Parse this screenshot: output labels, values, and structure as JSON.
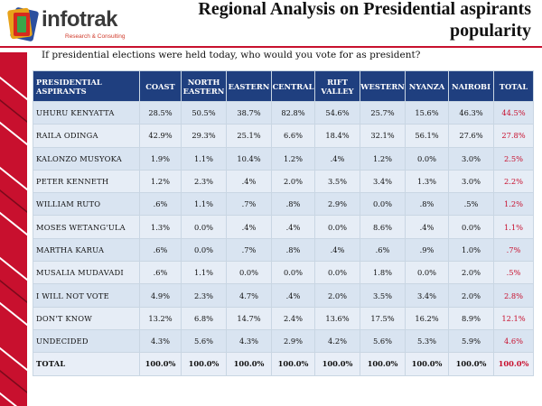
{
  "header": {
    "title": "Regional Analysis on Presidential aspirants popularity",
    "subtitle": "If presidential elections were held today, who would you vote for as president?",
    "logo_text": "infotrak",
    "logo_subtitle": "Research & Consulting"
  },
  "colors": {
    "accent": "#c8102e",
    "header_bg": "#1f3f7f",
    "row_bg": "#d9e4f1",
    "row_alt": "#e6edf6"
  },
  "table": {
    "columns": [
      "PRESIDENTIAL ASPIRANTS",
      "COAST",
      "NORTH EASTERN",
      "EASTERN",
      "CENTRAL",
      "RIFT VALLEY",
      "WESTERN",
      "NYANZA",
      "NAIROBI",
      "TOTAL"
    ],
    "rows": [
      {
        "name": "UHURU KENYATTA",
        "vals": [
          "28.5%",
          "50.5%",
          "38.7%",
          "82.8%",
          "54.6%",
          "25.7%",
          "15.6%",
          "46.3%",
          "44.5%"
        ]
      },
      {
        "name": "RAILA ODINGA",
        "vals": [
          "42.9%",
          "29.3%",
          "25.1%",
          "6.6%",
          "18.4%",
          "32.1%",
          "56.1%",
          "27.6%",
          "27.8%"
        ]
      },
      {
        "name": "KALONZO MUSYOKA",
        "vals": [
          "1.9%",
          "1.1%",
          "10.4%",
          "1.2%",
          ".4%",
          "1.2%",
          "0.0%",
          "3.0%",
          "2.5%"
        ]
      },
      {
        "name": "PETER KENNETH",
        "vals": [
          "1.2%",
          "2.3%",
          ".4%",
          "2.0%",
          "3.5%",
          "3.4%",
          "1.3%",
          "3.0%",
          "2.2%"
        ]
      },
      {
        "name": "WILLIAM RUTO",
        "vals": [
          ".6%",
          "1.1%",
          ".7%",
          ".8%",
          "2.9%",
          "0.0%",
          ".8%",
          ".5%",
          "1.2%"
        ]
      },
      {
        "name": "MOSES WETANG'ULA",
        "vals": [
          "1.3%",
          "0.0%",
          ".4%",
          ".4%",
          "0.0%",
          "8.6%",
          ".4%",
          "0.0%",
          "1.1%"
        ]
      },
      {
        "name": "MARTHA KARUA",
        "vals": [
          ".6%",
          "0.0%",
          ".7%",
          ".8%",
          ".4%",
          ".6%",
          ".9%",
          "1.0%",
          ".7%"
        ]
      },
      {
        "name": "MUSALIA MUDAVADI",
        "vals": [
          ".6%",
          "1.1%",
          "0.0%",
          "0.0%",
          "0.0%",
          "1.8%",
          "0.0%",
          "2.0%",
          ".5%"
        ]
      },
      {
        "name": "I WILL NOT VOTE",
        "vals": [
          "4.9%",
          "2.3%",
          "4.7%",
          ".4%",
          "2.0%",
          "3.5%",
          "3.4%",
          "2.0%",
          "2.8%"
        ]
      },
      {
        "name": "DON'T KNOW",
        "vals": [
          "13.2%",
          "6.8%",
          "14.7%",
          "2.4%",
          "13.6%",
          "17.5%",
          "16.2%",
          "8.9%",
          "12.1%"
        ]
      },
      {
        "name": "UNDECIDED",
        "vals": [
          "4.3%",
          "5.6%",
          "4.3%",
          "2.9%",
          "4.2%",
          "5.6%",
          "5.3%",
          "5.9%",
          "4.6%"
        ]
      },
      {
        "name": "TOTAL",
        "vals": [
          "100.0%",
          "100.0%",
          "100.0%",
          "100.0%",
          "100.0%",
          "100.0%",
          "100.0%",
          "100.0%",
          "100.0%"
        ]
      }
    ]
  }
}
